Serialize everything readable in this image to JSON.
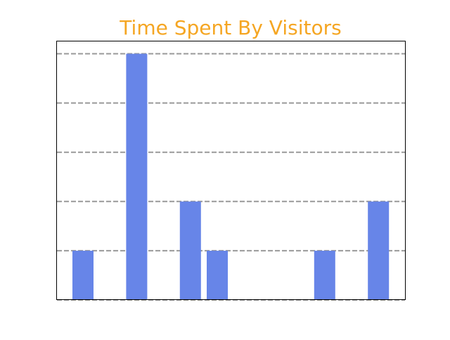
{
  "chart_data": {
    "type": "bar",
    "title": "Time Spent By Visitors",
    "xlabel": "",
    "ylabel": "",
    "categories": [
      "",
      "",
      "",
      "",
      "",
      "",
      "",
      "",
      "",
      "",
      "",
      "",
      ""
    ],
    "values": [
      1,
      0,
      5,
      0,
      2,
      1,
      0,
      0,
      0,
      1,
      0,
      2,
      0
    ],
    "ylim": [
      0,
      5.25
    ],
    "grid": true,
    "grid_lines": [
      1,
      2,
      3,
      4,
      5
    ],
    "legend": "none"
  },
  "colors": {
    "title": "#f5a623",
    "bar": "#6785e8",
    "grid": "#999999",
    "axes": "#000000",
    "background": "#ffffff"
  }
}
